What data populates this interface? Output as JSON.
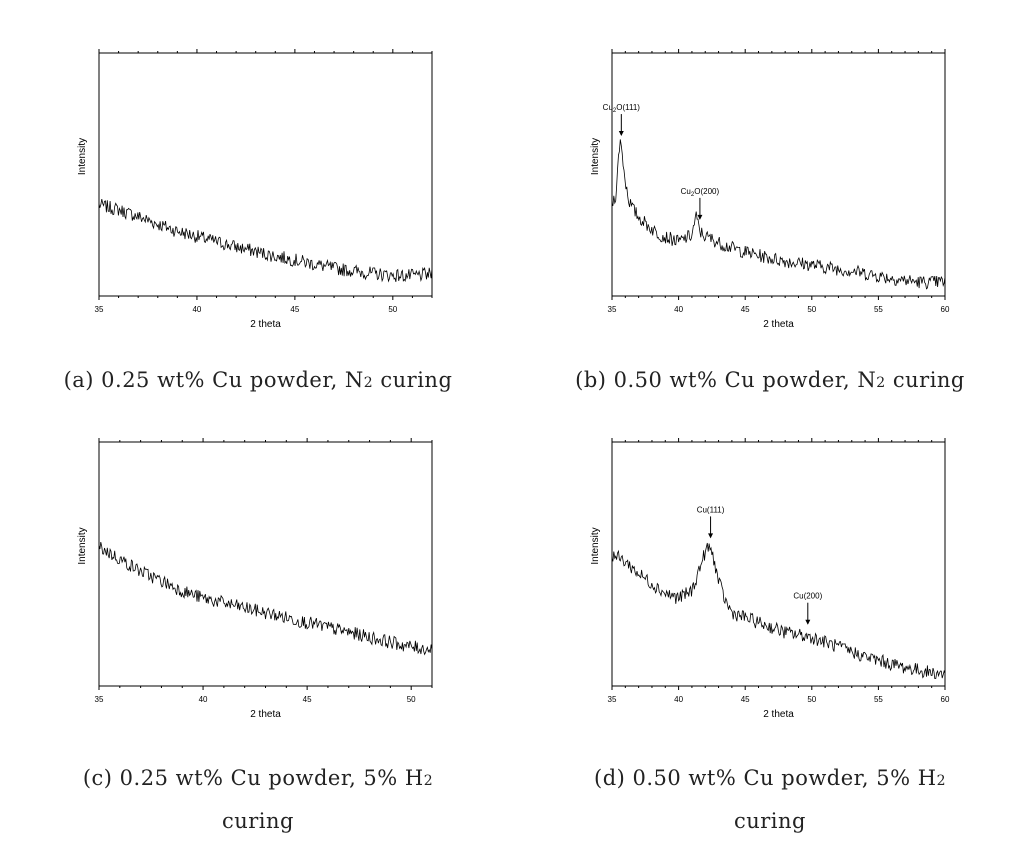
{
  "captions": [
    {
      "prefix": "(a) 0.25 wt% Cu powder, N",
      "sub": "2",
      "suffix": " curing",
      "line2": ""
    },
    {
      "prefix": "(b) 0.50 wt% Cu powder, N",
      "sub": "2",
      "suffix": " curing",
      "line2": ""
    },
    {
      "prefix": "(c) 0.25 wt% Cu powder, 5% H",
      "sub": "2",
      "suffix": "",
      "line2": "curing"
    },
    {
      "prefix": "(d) 0.50 wt% Cu powder, 5% H",
      "sub": "2",
      "suffix": "",
      "line2": "curing"
    }
  ],
  "chart_data": [
    {
      "type": "line",
      "panel": "a",
      "xlabel": "2 theta",
      "ylabel": "Intensity",
      "xlim": [
        35,
        52
      ],
      "ylim": [
        0,
        100
      ],
      "xticks": [
        35,
        40,
        45,
        50
      ],
      "series": [
        {
          "x": [
            35,
            36,
            37,
            38,
            39,
            40,
            41,
            42,
            43,
            44,
            45,
            46,
            47,
            48,
            49,
            50,
            51,
            52
          ],
          "y": [
            37.5,
            35.5,
            32.7,
            29.6,
            26.7,
            24.5,
            22.3,
            20.2,
            18.3,
            16.4,
            14.8,
            13.1,
            11.4,
            10.3,
            9.2,
            8.5,
            8.3,
            9.0
          ]
        }
      ],
      "annotations": []
    },
    {
      "type": "line",
      "panel": "b",
      "xlabel": "2 theta",
      "ylabel": "Intensity",
      "xlim": [
        35,
        60
      ],
      "ylim": [
        0,
        100
      ],
      "xticks": [
        35,
        40,
        45,
        50,
        55,
        60
      ],
      "series": [
        {
          "x": [
            35,
            35.3,
            35.6,
            35.8,
            36,
            36.3,
            36.6,
            37,
            37.5,
            38,
            38.5,
            39,
            39.5,
            40,
            40.5,
            41,
            41.3,
            41.6,
            41.8,
            42,
            42.5,
            43,
            44,
            45,
            46,
            47,
            48,
            49,
            50,
            51,
            52,
            53,
            54,
            55,
            56,
            57,
            58,
            59,
            60
          ],
          "y": [
            38,
            42,
            65,
            57,
            47,
            39,
            35.5,
            32.5,
            30,
            27.5,
            25.5,
            24.3,
            23.4,
            22.3,
            23.8,
            25,
            33,
            26.5,
            25.5,
            24.5,
            23.4,
            21.9,
            19.8,
            18.1,
            16.7,
            15.4,
            14.4,
            13.6,
            12.8,
            11.9,
            11.1,
            10.4,
            9.3,
            8.3,
            7.3,
            6.5,
            5.8,
            5.6,
            6.0
          ]
        }
      ],
      "annotations": [
        {
          "label": "Cu2O(111)",
          "main": "Cu",
          "sub": "2",
          "rest": "O(111)",
          "x": 35.7
        },
        {
          "label": "Cu2O(200)",
          "main": "Cu",
          "sub": "2",
          "rest": "O(200)",
          "x": 41.6
        }
      ]
    },
    {
      "type": "line",
      "panel": "c",
      "xlabel": "2 theta",
      "ylabel": "Intensity",
      "xlim": [
        35,
        51
      ],
      "ylim": [
        0,
        100
      ],
      "xticks": [
        35,
        40,
        45,
        50
      ],
      "series": [
        {
          "x": [
            35,
            36,
            37,
            38,
            39,
            40,
            41,
            42,
            43,
            44,
            45,
            46,
            47,
            48,
            49,
            50,
            51
          ],
          "y": [
            57,
            52,
            47,
            43,
            39,
            36,
            34,
            32,
            30,
            28,
            26,
            24,
            22,
            20,
            18,
            16,
            15
          ]
        }
      ],
      "annotations": []
    },
    {
      "type": "line",
      "panel": "d",
      "xlabel": "2 theta",
      "ylabel": "Intensity",
      "xlim": [
        35,
        60
      ],
      "ylim": [
        0,
        100
      ],
      "xticks": [
        35,
        40,
        45,
        50,
        55,
        60
      ],
      "series": [
        {
          "x": [
            35,
            36,
            37,
            38,
            39,
            40,
            41,
            41.5,
            42,
            42.3,
            42.6,
            43,
            43.5,
            44,
            45,
            46,
            47,
            48,
            49,
            50,
            51,
            52,
            53,
            54,
            55,
            56,
            57,
            58,
            59,
            60
          ],
          "y": [
            54,
            51,
            46,
            42,
            38,
            36,
            39,
            47,
            55,
            57,
            53,
            43,
            35,
            30,
            28,
            26,
            24,
            22,
            21,
            20,
            18,
            16,
            14,
            12,
            10.5,
            9,
            7.6,
            6.5,
            5.5,
            5
          ]
        }
      ],
      "annotations": [
        {
          "label": "Cu(111)",
          "main": "Cu(111)",
          "sub": "",
          "rest": "",
          "x": 42.4
        },
        {
          "label": "Cu(200)",
          "main": "Cu(200)",
          "sub": "",
          "rest": "",
          "x": 49.7
        }
      ]
    }
  ]
}
